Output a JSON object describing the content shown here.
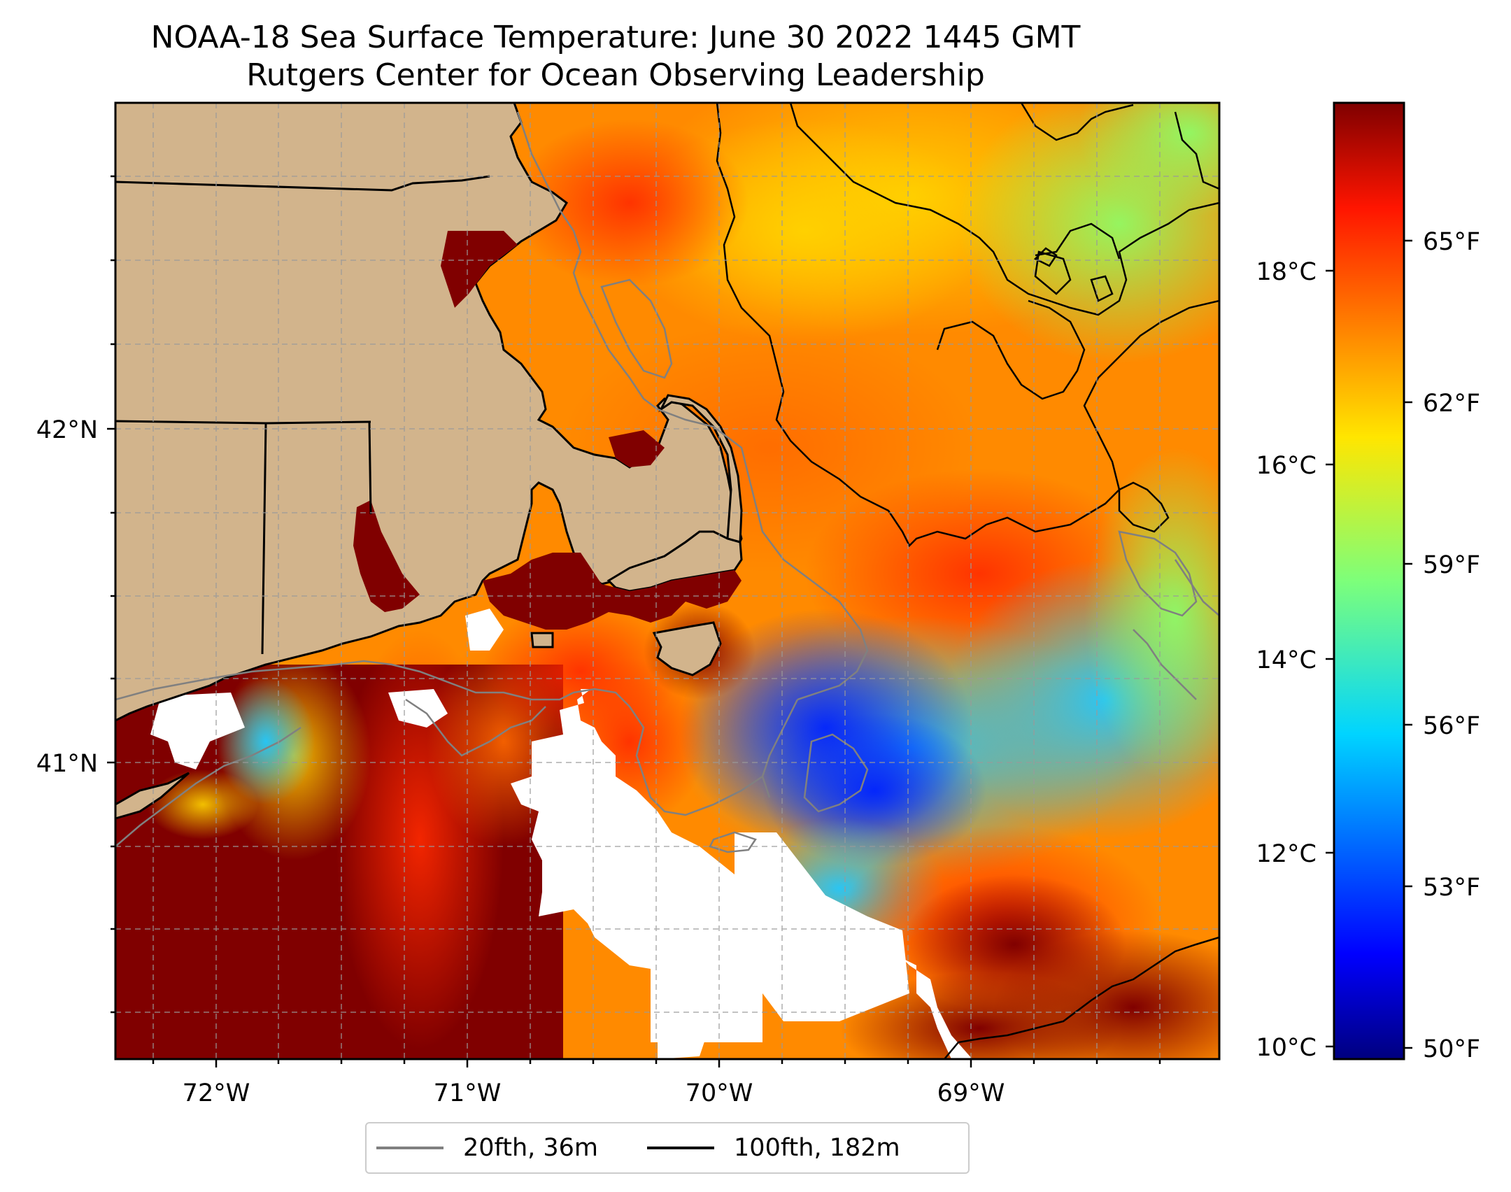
{
  "title": "NOAA-18 Sea Surface Temperature: June 30 2022 1445 GMT",
  "subtitle": "Rutgers Center for Ocean Observing Leadership",
  "map": {
    "lon_ticks": [
      "72°W",
      "71°W",
      "70°W",
      "69°W"
    ],
    "lat_ticks": [
      "42°N",
      "41°N"
    ],
    "gridlines": true,
    "land_color": "#d2b48c",
    "no_data_color": "#ffffff"
  },
  "colorbar": {
    "colormap": "jet",
    "celsius_ticks": [
      "18°C",
      "16°C",
      "14°C",
      "12°C",
      "10°C"
    ],
    "fahrenheit_ticks": [
      "65°F",
      "62°F",
      "59°F",
      "56°F",
      "53°F",
      "50°F"
    ],
    "range_c": [
      9.8,
      19.7
    ]
  },
  "legend": {
    "placement": "bottom-center",
    "items": [
      {
        "label": "20fth, 36m",
        "color": "#808080"
      },
      {
        "label": "100fth, 182m",
        "color": "#000000"
      }
    ]
  }
}
